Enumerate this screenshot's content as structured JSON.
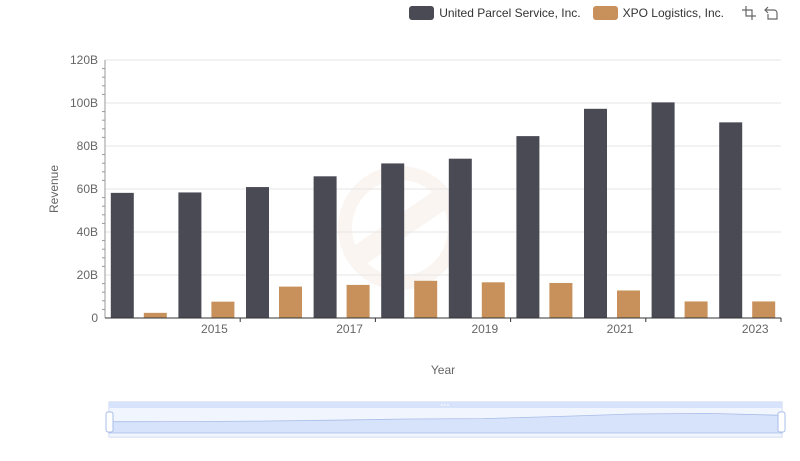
{
  "chart_data": {
    "type": "bar",
    "title": "",
    "xlabel": "Year",
    "ylabel": "Revenue",
    "ylim": [
      0,
      120
    ],
    "y_ticks": [
      "0",
      "20B",
      "40B",
      "60B",
      "80B",
      "100B",
      "120B"
    ],
    "x_tick_labels": [
      "2015",
      "2017",
      "2019",
      "2021",
      "2023"
    ],
    "categories": [
      "2014",
      "2015",
      "2016",
      "2017",
      "2018",
      "2019",
      "2020",
      "2021",
      "2022",
      "2023"
    ],
    "unit": "B",
    "legend_position": "top-right",
    "grid": true,
    "series": [
      {
        "name": "United Parcel Service, Inc.",
        "color": "#4a4a55",
        "values": [
          58.2,
          58.4,
          60.9,
          65.9,
          71.9,
          74.1,
          84.6,
          97.3,
          100.3,
          91.0
        ]
      },
      {
        "name": "XPO Logistics, Inc.",
        "color": "#c8915b",
        "values": [
          2.4,
          7.6,
          14.6,
          15.4,
          17.3,
          16.6,
          16.3,
          12.8,
          7.7,
          7.7
        ]
      }
    ]
  },
  "colors": {
    "grid": "#e6e6e6",
    "axis": "#333333",
    "zoom_fill": "#d7e3fb",
    "zoom_border": "#c7d4ee"
  }
}
